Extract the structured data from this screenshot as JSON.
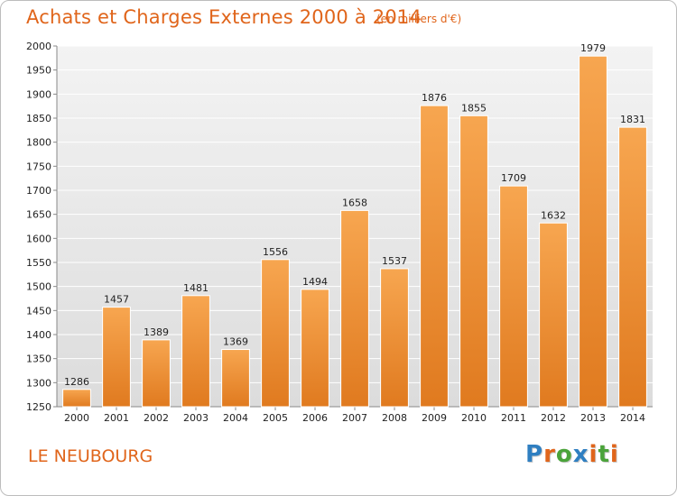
{
  "header": {
    "title": "Achats et Charges Externes 2000 à 2014",
    "subtitle": "(en milliers d'€)"
  },
  "footer": {
    "location": "LE NEUBOURG",
    "logo_letters": [
      {
        "char": "P",
        "color": "#2f7fc1"
      },
      {
        "char": "r",
        "color": "#e0651b"
      },
      {
        "char": "o",
        "color": "#4aa33a"
      },
      {
        "char": "x",
        "color": "#2f7fc1"
      },
      {
        "char": "i",
        "color": "#e0651b"
      },
      {
        "char": "t",
        "color": "#4aa33a"
      },
      {
        "char": "i",
        "color": "#e0651b"
      }
    ]
  },
  "chart_data": {
    "type": "bar",
    "categories": [
      "2000",
      "2001",
      "2002",
      "2003",
      "2004",
      "2005",
      "2006",
      "2007",
      "2008",
      "2009",
      "2010",
      "2011",
      "2012",
      "2013",
      "2014"
    ],
    "values": [
      1286,
      1457,
      1389,
      1481,
      1369,
      1556,
      1494,
      1658,
      1537,
      1876,
      1855,
      1709,
      1632,
      1979,
      1831
    ],
    "title": "Achats et Charges Externes 2000 à 2014",
    "subtitle": "(en milliers d'€)",
    "ylim": [
      1250,
      2000
    ],
    "yticks": [
      1250,
      1300,
      1350,
      1400,
      1450,
      1500,
      1550,
      1600,
      1650,
      1700,
      1750,
      1800,
      1850,
      1900,
      1950,
      2000
    ],
    "grid": true,
    "bar_color_top": "#f7a650",
    "bar_color_bottom": "#e07a1f",
    "data_labels": true
  }
}
